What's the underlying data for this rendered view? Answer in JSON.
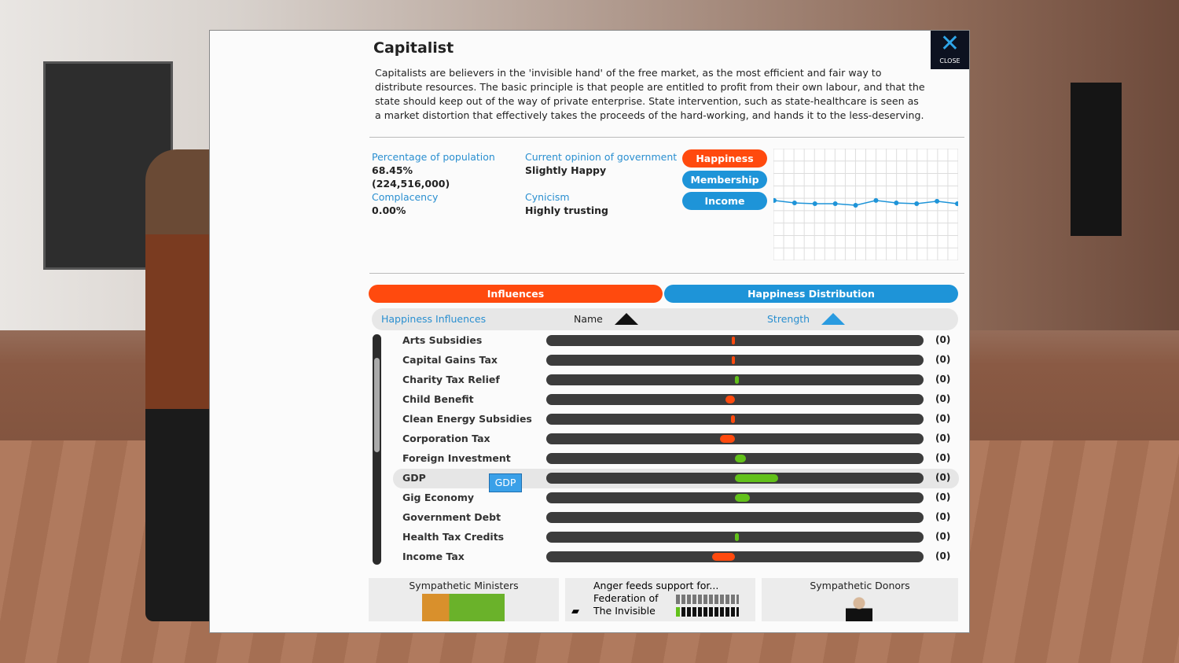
{
  "group": {
    "title": "Capitalist",
    "description": "Capitalists are believers in the 'invisible hand' of the free market, as the most efficient and fair way to distribute resources. The basic principle is that people are entitled to profit from their own labour, and that the state should keep out of the way of private enterprise. State intervention, such as state-healthcare is seen as a market distortion that effectively takes the proceeds of the hard-working, and hands it to the less-deserving."
  },
  "close_label": "CLOSE",
  "stats": {
    "pop_label": "Percentage of population",
    "pop_pct": "68.45%",
    "pop_count": "(224,516,000)",
    "complacency_label": "Complacency",
    "complacency": "0.00%",
    "opinion_label": "Current opinion of government",
    "opinion": "Slightly Happy",
    "cynicism_label": "Cynicism",
    "cynicism": "Highly trusting"
  },
  "chart_modes": [
    "Happiness",
    "Membership",
    "Income"
  ],
  "active_mode": "Happiness",
  "chart_data": {
    "type": "line",
    "values": [
      53.6,
      51.4,
      50.7,
      50.7,
      49.3,
      53.6,
      51.4,
      50.7,
      52.9,
      50.7
    ],
    "ylim": [
      0,
      100
    ],
    "grid": true,
    "color": "#1e94d8"
  },
  "tabs": {
    "influences": "Influences",
    "distribution": "Happiness Distribution"
  },
  "table": {
    "title": "Happiness Influences",
    "col_name": "Name",
    "col_strength": "Strength",
    "rows": [
      {
        "name": "Arts Subsidies",
        "strength": -0.01,
        "value": "(0)"
      },
      {
        "name": "Capital Gains Tax",
        "strength": -0.01,
        "value": "(0)"
      },
      {
        "name": "Charity Tax Relief",
        "strength": 0.02,
        "value": "(0)"
      },
      {
        "name": "Child Benefit",
        "strength": -0.05,
        "value": "(0)"
      },
      {
        "name": "Clean Energy Subsidies",
        "strength": -0.02,
        "value": "(0)"
      },
      {
        "name": "Corporation Tax",
        "strength": -0.08,
        "value": "(0)"
      },
      {
        "name": "Foreign Investment",
        "strength": 0.06,
        "value": "(0)"
      },
      {
        "name": "GDP",
        "strength": 0.23,
        "value": "(0)"
      },
      {
        "name": "Gig Economy",
        "strength": 0.08,
        "value": "(0)"
      },
      {
        "name": "Government Debt",
        "strength": 0,
        "value": "(0)"
      },
      {
        "name": "Health Tax Credits",
        "strength": 0.02,
        "value": "(0)"
      },
      {
        "name": "Income Tax",
        "strength": -0.12,
        "value": "(0)"
      }
    ],
    "selected": "GDP",
    "tooltip": "GDP"
  },
  "footer": {
    "ministers": "Sympathetic Ministers",
    "anger": "Anger feeds support for...",
    "anger_groups": [
      "Federation of",
      "The Invisible"
    ],
    "donors": "Sympathetic Donors"
  },
  "colors": {
    "positive": "#62c11a",
    "negative": "#ff4a0e",
    "accent": "#1e94d8"
  }
}
